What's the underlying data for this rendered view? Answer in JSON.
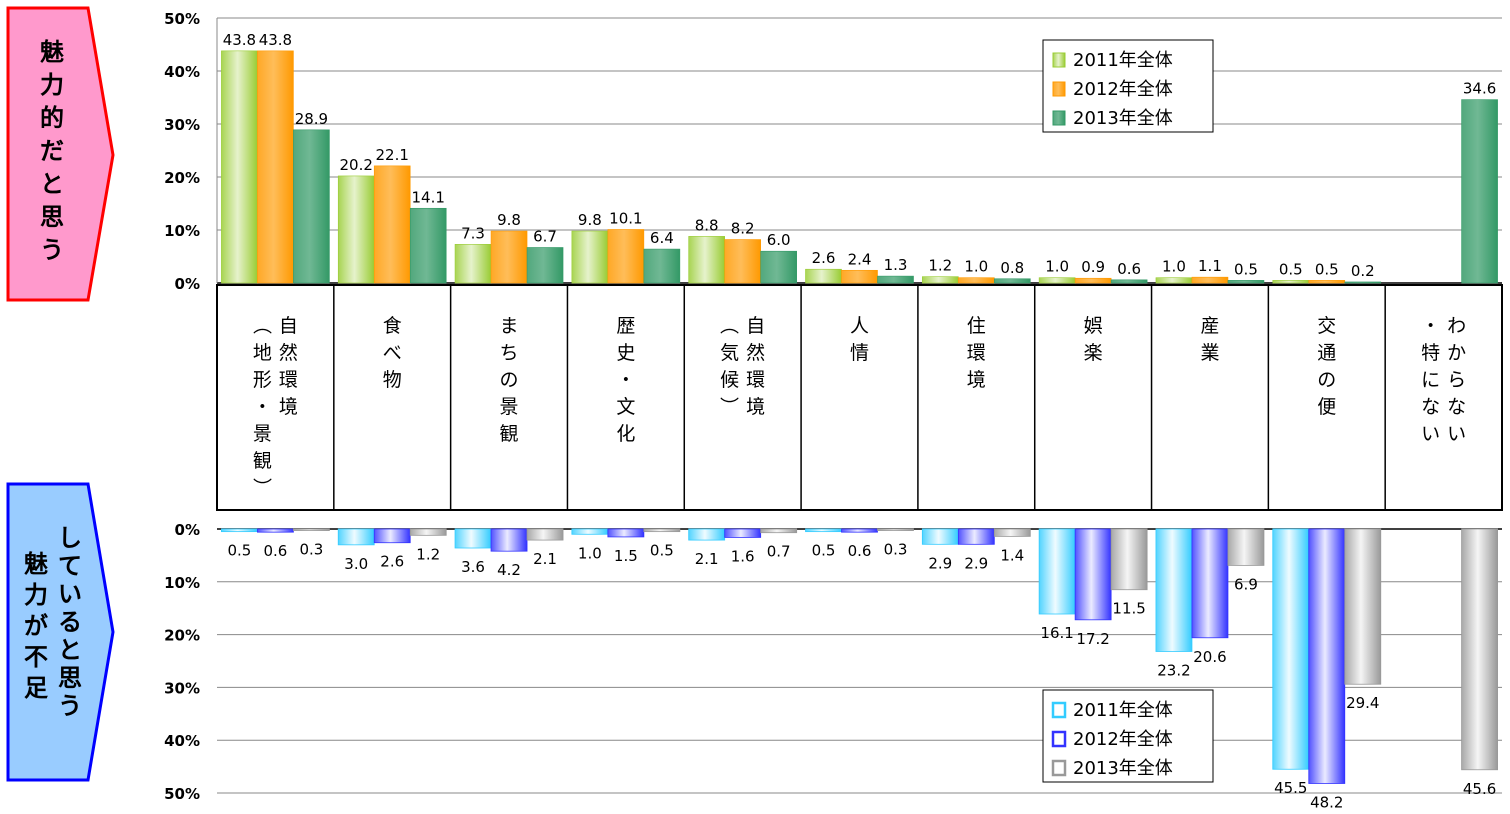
{
  "side_labels": {
    "top": "魅力的だと思う",
    "bottom_right_col": "していると思う",
    "bottom_left_col": "魅力が不足"
  },
  "colors": {
    "top_2011": "#99cc33",
    "top_2012": "#ff9900",
    "top_2013": "#339966",
    "bottom_2011": "#33ccff",
    "bottom_2012": "#3333ff",
    "bottom_2013": "#999999",
    "top_tag": "#ff99cc",
    "bottom_tag": "#99ccff"
  },
  "chart_data": [
    {
      "type": "bar",
      "title": "",
      "categories": [
        "自然環境（地形・景観）",
        "食べ物",
        "まちの景観",
        "歴史・文化",
        "自然環境（気候）",
        "人情",
        "住環境",
        "娯楽",
        "産業",
        "交通の便",
        "特にない・わからない"
      ],
      "category_columns": [
        [
          "自然環境",
          "（地形・景観）"
        ],
        [
          "食べ物"
        ],
        [
          "まちの景観"
        ],
        [
          "歴史・文化"
        ],
        [
          "自然環境",
          "（気候）"
        ],
        [
          "人情"
        ],
        [
          "住環境"
        ],
        [
          "娯楽"
        ],
        [
          "産業"
        ],
        [
          "交通の便"
        ],
        [
          "わからない",
          "・特にない"
        ]
      ],
      "series": [
        {
          "name": "2011年全体",
          "values": [
            43.8,
            20.2,
            7.3,
            9.8,
            8.8,
            2.6,
            1.2,
            1.0,
            1.0,
            0.5,
            null
          ],
          "labels": [
            "43.8",
            "20.2",
            "7.3",
            "9.8",
            "8.8",
            "2.6",
            "1.2",
            "1.0",
            "1.0",
            "0.5",
            ""
          ]
        },
        {
          "name": "2012年全体",
          "values": [
            43.8,
            22.1,
            9.8,
            10.1,
            8.2,
            2.4,
            1.0,
            0.9,
            1.1,
            0.5,
            null
          ],
          "labels": [
            "43.8",
            "22.1",
            "9.8",
            "10.1",
            "8.2",
            "2.4",
            "1.0",
            "0.9",
            "1.1",
            "0.5",
            ""
          ]
        },
        {
          "name": "2013年全体",
          "values": [
            28.9,
            14.1,
            6.7,
            6.4,
            6.0,
            1.3,
            0.8,
            0.6,
            0.5,
            0.2,
            34.6
          ],
          "labels": [
            "28.9",
            "14.1",
            "6.7",
            "6.4",
            "6.0",
            "1.3",
            "0.8",
            "0.6",
            "0.5",
            "0.2",
            "34.6"
          ]
        }
      ],
      "ylim": [
        0,
        50
      ],
      "yticks": [
        "0%",
        "10%",
        "20%",
        "30%",
        "40%",
        "50%"
      ],
      "legend_placement": "top-right"
    },
    {
      "type": "bar",
      "title": "",
      "orientation": "downward",
      "series": [
        {
          "name": "2011年全体",
          "values": [
            0.5,
            3.0,
            3.6,
            1.0,
            2.1,
            0.5,
            2.9,
            16.1,
            23.2,
            45.5,
            null
          ],
          "labels": [
            "0.5",
            "3.0",
            "3.6",
            "1.0",
            "2.1",
            "0.5",
            "2.9",
            "16.1",
            "23.2",
            "45.5",
            ""
          ]
        },
        {
          "name": "2012年全体",
          "values": [
            0.6,
            2.6,
            4.2,
            1.5,
            1.6,
            0.6,
            2.9,
            17.2,
            20.6,
            48.2,
            null
          ],
          "labels": [
            "0.6",
            "2.6",
            "4.2",
            "1.5",
            "1.6",
            "0.6",
            "2.9",
            "17.2",
            "20.6",
            "48.2",
            ""
          ]
        },
        {
          "name": "2013年全体",
          "values": [
            0.3,
            1.2,
            2.1,
            0.5,
            0.7,
            0.3,
            1.4,
            11.5,
            6.9,
            29.4,
            45.6
          ],
          "labels": [
            "0.3",
            "1.2",
            "2.1",
            "0.5",
            "0.7",
            "0.3",
            "1.4",
            "11.5",
            "6.9",
            "29.4",
            "45.6"
          ]
        }
      ],
      "ylim": [
        0,
        50
      ],
      "yticks": [
        "0%",
        "10%",
        "20%",
        "30%",
        "40%",
        "50%"
      ],
      "legend_placement": "bottom-right"
    }
  ]
}
